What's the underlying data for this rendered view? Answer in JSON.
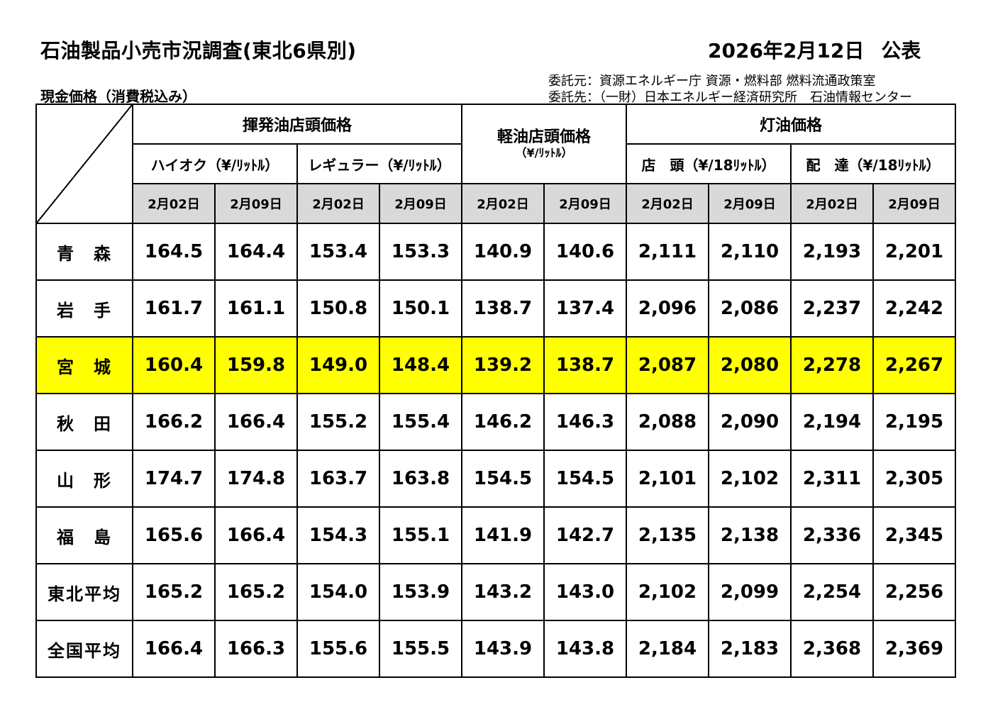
{
  "header": {
    "title": "石油製品小売市況調査(東北6県別)",
    "date": "2026年2月12日",
    "announce": "公表",
    "client": "委託元：資源エネルギー庁 資源・燃料部 燃料流通政策室",
    "contractor": "委託先：（一財）日本エネルギー経済研究所　石油情報センター",
    "note": "現金価格（消費税込み）"
  },
  "table": {
    "groups": {
      "gasoline": "揮発油店頭価格",
      "diesel": "軽油店頭価格",
      "diesel_unit": "（¥/ﾘｯﾄﾙ）",
      "kerosene": "灯油価格"
    },
    "subheaders": {
      "high_octane": "ハイオク（¥/ﾘｯﾄﾙ）",
      "regular": "レギュラー（¥/ﾘｯﾄﾙ）",
      "store": "店　頭（¥/18ﾘｯﾄﾙ）",
      "delivery": "配　達（¥/18ﾘｯﾄﾙ）"
    },
    "dates": [
      "2月02日",
      "2月09日",
      "2月02日",
      "2月09日",
      "2月02日",
      "2月09日",
      "2月02日",
      "2月09日",
      "2月02日",
      "2月09日"
    ],
    "rows": [
      {
        "name": "青　森",
        "values": [
          "164.5",
          "164.4",
          "153.4",
          "153.3",
          "140.9",
          "140.6",
          "2,111",
          "2,110",
          "2,193",
          "2,201"
        ]
      },
      {
        "name": "岩　手",
        "values": [
          "161.7",
          "161.1",
          "150.8",
          "150.1",
          "138.7",
          "137.4",
          "2,096",
          "2,086",
          "2,237",
          "2,242"
        ]
      },
      {
        "name": "宮　城",
        "values": [
          "160.4",
          "159.8",
          "149.0",
          "148.4",
          "139.2",
          "138.7",
          "2,087",
          "2,080",
          "2,278",
          "2,267"
        ]
      },
      {
        "name": "秋　田",
        "values": [
          "166.2",
          "166.4",
          "155.2",
          "155.4",
          "146.2",
          "146.3",
          "2,088",
          "2,090",
          "2,194",
          "2,195"
        ]
      },
      {
        "name": "山　形",
        "values": [
          "174.7",
          "174.8",
          "163.7",
          "163.8",
          "154.5",
          "154.5",
          "2,101",
          "2,102",
          "2,311",
          "2,305"
        ]
      },
      {
        "name": "福　島",
        "values": [
          "165.6",
          "166.4",
          "154.3",
          "155.1",
          "141.9",
          "142.7",
          "2,135",
          "2,138",
          "2,336",
          "2,345"
        ]
      },
      {
        "name": "東北平均",
        "values": [
          "165.2",
          "165.2",
          "154.0",
          "153.9",
          "143.2",
          "143.0",
          "2,102",
          "2,099",
          "2,254",
          "2,256"
        ]
      },
      {
        "name": "全国平均",
        "values": [
          "166.4",
          "166.3",
          "155.6",
          "155.5",
          "143.9",
          "143.8",
          "2,184",
          "2,183",
          "2,368",
          "2,369"
        ]
      }
    ]
  },
  "colors": {
    "highlight_row": "#ffff00",
    "date_header_bg": "#d9d9d9",
    "tohoku_average_border": "#1f72c4"
  }
}
